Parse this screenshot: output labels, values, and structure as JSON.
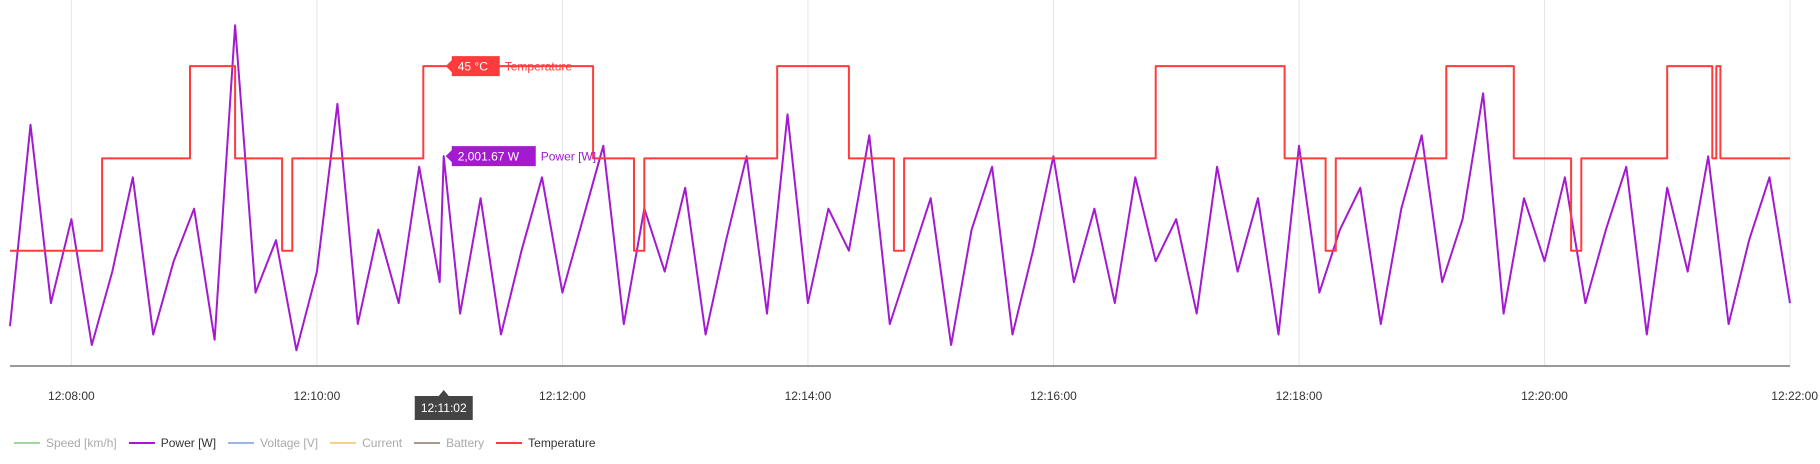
{
  "chart_data": {
    "type": "line",
    "x_axis": {
      "ticks": [
        "12:08:00",
        "12:10:00",
        "12:12:00",
        "12:14:00",
        "12:16:00",
        "12:18:00",
        "12:20:00",
        "12:22:00"
      ],
      "range": [
        "12:07:30",
        "12:22:00"
      ]
    },
    "crosshair": {
      "x": "12:11:02",
      "label": "12:11:02"
    },
    "series": [
      {
        "name": "Speed [km/h]",
        "color": "#9ed79e",
        "visible": false,
        "points": []
      },
      {
        "name": "Power [W]",
        "color": "#a31ad1",
        "visible": true,
        "ylim": [
          0,
          3300
        ],
        "tooltip": {
          "value": "2,001.67 W",
          "label": "Power [W]"
        },
        "points": [
          [
            "12:07:30",
            380
          ],
          [
            "12:07:40",
            2300
          ],
          [
            "12:07:50",
            600
          ],
          [
            "12:08:00",
            1400
          ],
          [
            "12:08:10",
            200
          ],
          [
            "12:08:20",
            900
          ],
          [
            "12:08:30",
            1800
          ],
          [
            "12:08:40",
            300
          ],
          [
            "12:08:50",
            1000
          ],
          [
            "12:09:00",
            1500
          ],
          [
            "12:09:10",
            250
          ],
          [
            "12:09:20",
            3250
          ],
          [
            "12:09:30",
            700
          ],
          [
            "12:09:40",
            1200
          ],
          [
            "12:09:50",
            150
          ],
          [
            "12:10:00",
            900
          ],
          [
            "12:10:10",
            2500
          ],
          [
            "12:10:20",
            400
          ],
          [
            "12:10:30",
            1300
          ],
          [
            "12:10:40",
            600
          ],
          [
            "12:10:50",
            1900
          ],
          [
            "12:11:00",
            800
          ],
          [
            "12:11:02",
            2001.67
          ],
          [
            "12:11:10",
            500
          ],
          [
            "12:11:20",
            1600
          ],
          [
            "12:11:30",
            300
          ],
          [
            "12:11:40",
            1100
          ],
          [
            "12:11:50",
            1800
          ],
          [
            "12:12:00",
            700
          ],
          [
            "12:12:10",
            1400
          ],
          [
            "12:12:20",
            2100
          ],
          [
            "12:12:30",
            400
          ],
          [
            "12:12:40",
            1500
          ],
          [
            "12:12:50",
            900
          ],
          [
            "12:13:00",
            1700
          ],
          [
            "12:13:10",
            300
          ],
          [
            "12:13:20",
            1200
          ],
          [
            "12:13:30",
            2000
          ],
          [
            "12:13:40",
            500
          ],
          [
            "12:13:50",
            2400
          ],
          [
            "12:14:00",
            600
          ],
          [
            "12:14:10",
            1500
          ],
          [
            "12:14:20",
            1100
          ],
          [
            "12:14:30",
            2200
          ],
          [
            "12:14:40",
            400
          ],
          [
            "12:14:50",
            1000
          ],
          [
            "12:15:00",
            1600
          ],
          [
            "12:15:10",
            200
          ],
          [
            "12:15:20",
            1300
          ],
          [
            "12:15:30",
            1900
          ],
          [
            "12:15:40",
            300
          ],
          [
            "12:15:50",
            1100
          ],
          [
            "12:16:00",
            2000
          ],
          [
            "12:16:10",
            800
          ],
          [
            "12:16:20",
            1500
          ],
          [
            "12:16:30",
            600
          ],
          [
            "12:16:40",
            1800
          ],
          [
            "12:16:50",
            1000
          ],
          [
            "12:17:00",
            1400
          ],
          [
            "12:17:10",
            500
          ],
          [
            "12:17:20",
            1900
          ],
          [
            "12:17:30",
            900
          ],
          [
            "12:17:40",
            1600
          ],
          [
            "12:17:50",
            300
          ],
          [
            "12:18:00",
            2100
          ],
          [
            "12:18:10",
            700
          ],
          [
            "12:18:20",
            1300
          ],
          [
            "12:18:30",
            1700
          ],
          [
            "12:18:40",
            400
          ],
          [
            "12:18:50",
            1500
          ],
          [
            "12:19:00",
            2200
          ],
          [
            "12:19:10",
            800
          ],
          [
            "12:19:20",
            1400
          ],
          [
            "12:19:30",
            2600
          ],
          [
            "12:19:40",
            500
          ],
          [
            "12:19:50",
            1600
          ],
          [
            "12:20:00",
            1000
          ],
          [
            "12:20:10",
            1800
          ],
          [
            "12:20:20",
            600
          ],
          [
            "12:20:30",
            1300
          ],
          [
            "12:20:40",
            1900
          ],
          [
            "12:20:50",
            300
          ],
          [
            "12:21:00",
            1700
          ],
          [
            "12:21:10",
            900
          ],
          [
            "12:21:20",
            2000
          ],
          [
            "12:21:30",
            400
          ],
          [
            "12:21:40",
            1200
          ],
          [
            "12:21:50",
            1800
          ],
          [
            "12:22:00",
            600
          ]
        ]
      },
      {
        "name": "Voltage [V]",
        "color": "#9ab5e8",
        "visible": false,
        "points": []
      },
      {
        "name": "Current",
        "color": "#f2d38a",
        "visible": false,
        "points": []
      },
      {
        "name": "Battery",
        "color": "#a89a8a",
        "visible": false,
        "points": []
      },
      {
        "name": "Temperature",
        "color": "#ff3b3b",
        "visible": true,
        "ylim": [
          38.5,
          46
        ],
        "tooltip": {
          "value": "45 °C",
          "label": "Temperature"
        },
        "points": [
          [
            "12:07:30",
            41
          ],
          [
            "12:08:15",
            41
          ],
          [
            "12:08:15",
            43
          ],
          [
            "12:08:58",
            43
          ],
          [
            "12:08:58",
            45
          ],
          [
            "12:09:20",
            45
          ],
          [
            "12:09:20",
            43
          ],
          [
            "12:09:43",
            43
          ],
          [
            "12:09:43",
            41
          ],
          [
            "12:09:48",
            41
          ],
          [
            "12:09:48",
            43
          ],
          [
            "12:10:52",
            43
          ],
          [
            "12:10:52",
            45
          ],
          [
            "12:12:15",
            45
          ],
          [
            "12:12:15",
            43
          ],
          [
            "12:12:35",
            43
          ],
          [
            "12:12:35",
            41
          ],
          [
            "12:12:40",
            41
          ],
          [
            "12:12:40",
            43
          ],
          [
            "12:13:45",
            43
          ],
          [
            "12:13:45",
            45
          ],
          [
            "12:14:20",
            45
          ],
          [
            "12:14:20",
            43
          ],
          [
            "12:14:42",
            43
          ],
          [
            "12:14:42",
            41
          ],
          [
            "12:14:47",
            41
          ],
          [
            "12:14:47",
            43
          ],
          [
            "12:16:50",
            43
          ],
          [
            "12:16:50",
            45
          ],
          [
            "12:17:53",
            45
          ],
          [
            "12:17:53",
            43
          ],
          [
            "12:18:13",
            43
          ],
          [
            "12:18:13",
            41
          ],
          [
            "12:18:18",
            41
          ],
          [
            "12:18:18",
            43
          ],
          [
            "12:19:12",
            43
          ],
          [
            "12:19:12",
            45
          ],
          [
            "12:19:45",
            45
          ],
          [
            "12:19:45",
            43
          ],
          [
            "12:20:13",
            43
          ],
          [
            "12:20:13",
            41
          ],
          [
            "12:20:18",
            41
          ],
          [
            "12:20:18",
            43
          ],
          [
            "12:21:00",
            43
          ],
          [
            "12:21:00",
            45
          ],
          [
            "12:21:22",
            45
          ],
          [
            "12:21:22",
            43
          ],
          [
            "12:21:24",
            43
          ],
          [
            "12:21:24",
            45
          ],
          [
            "12:21:26",
            45
          ],
          [
            "12:21:26",
            43
          ],
          [
            "12:22:00",
            43
          ]
        ]
      }
    ]
  }
}
